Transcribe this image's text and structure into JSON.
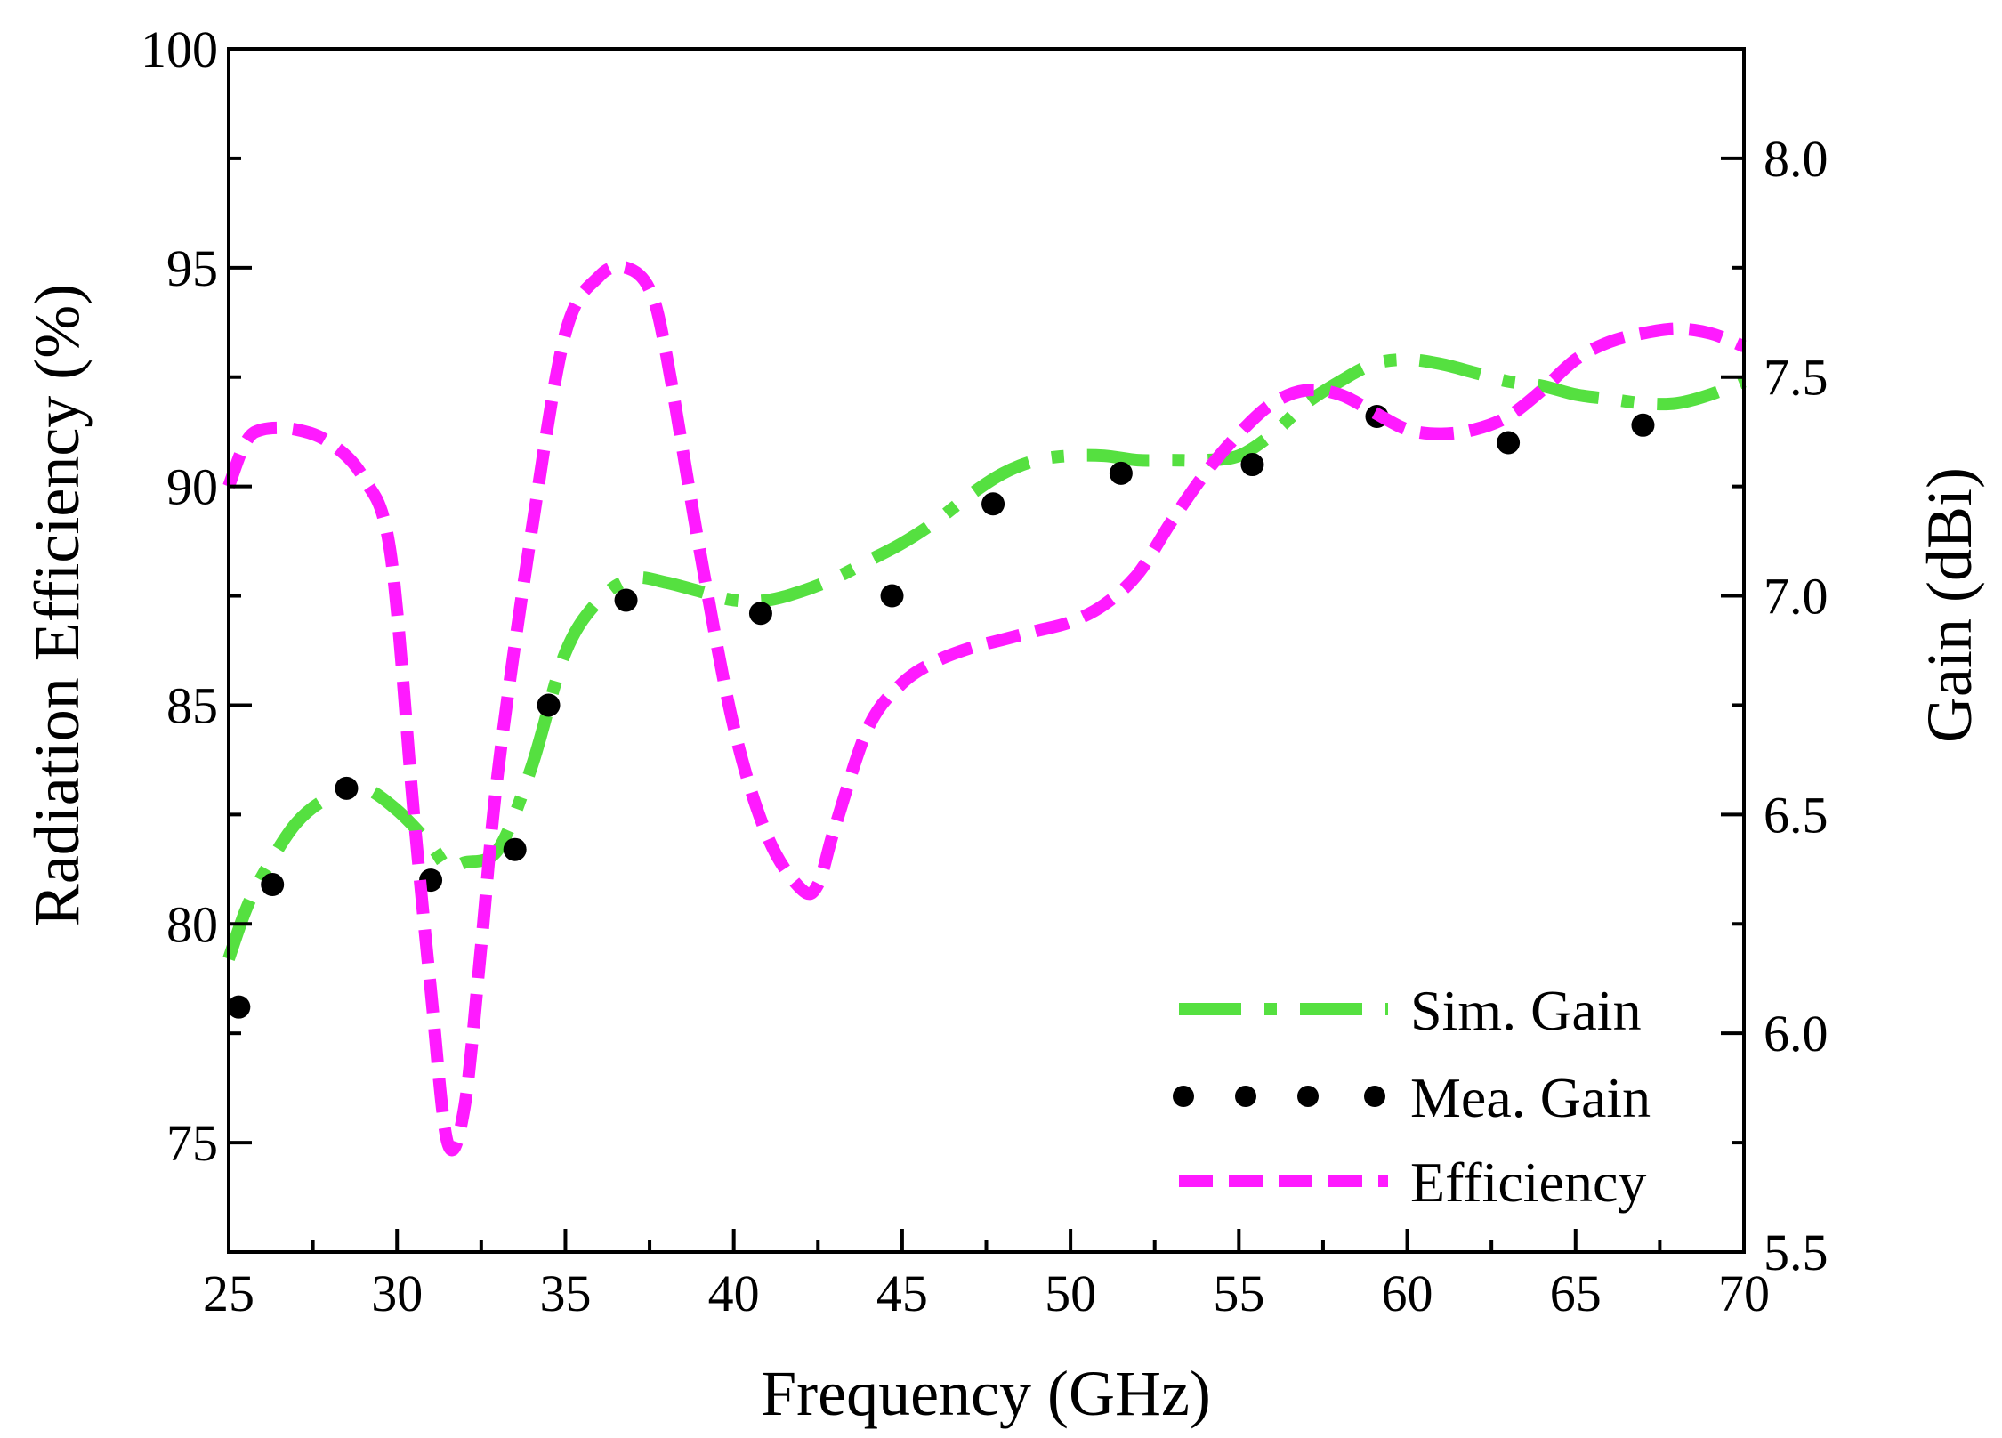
{
  "chart_data": {
    "type": "line",
    "title": "",
    "xlabel": "Frequency (GHz)",
    "ylabel_left": "Radiation Efficiency (%)",
    "ylabel_right": "Gain (dBi)",
    "xlim": [
      25,
      70
    ],
    "ylim_left": [
      72.5,
      100
    ],
    "ylim_right": [
      5.5,
      8.25
    ],
    "x_ticks": [
      25,
      30,
      35,
      40,
      45,
      50,
      55,
      60,
      65,
      70
    ],
    "y_left_ticks": [
      75,
      80,
      85,
      90,
      95,
      100
    ],
    "y_right_ticks": [
      "5.5",
      "6.0",
      "6.5",
      "7.0",
      "7.5",
      "8.0"
    ],
    "legend_position": "bottom-right",
    "series": [
      {
        "name": "Sim. Gain",
        "axis": "right",
        "color": "#55e040",
        "style": "dash-dot",
        "x": [
          25,
          25.5,
          26,
          27,
          28,
          29,
          30,
          31,
          31.5,
          32,
          33,
          34,
          35,
          36,
          37,
          38,
          39,
          40,
          41,
          42,
          43,
          44,
          45,
          46,
          47,
          48,
          49,
          50,
          51,
          52,
          53,
          54,
          55,
          56,
          57,
          58,
          59,
          60,
          61,
          62,
          63,
          64,
          65,
          66,
          67,
          68,
          69,
          70
        ],
        "y": [
          6.17,
          6.28,
          6.36,
          6.48,
          6.54,
          6.56,
          6.51,
          6.43,
          6.38,
          6.39,
          6.42,
          6.61,
          6.87,
          6.99,
          7.04,
          7.03,
          7.01,
          6.99,
          6.99,
          7.01,
          7.04,
          7.08,
          7.12,
          7.17,
          7.23,
          7.28,
          7.31,
          7.32,
          7.32,
          7.31,
          7.31,
          7.31,
          7.32,
          7.37,
          7.44,
          7.49,
          7.53,
          7.54,
          7.53,
          7.51,
          7.49,
          7.48,
          7.46,
          7.45,
          7.44,
          7.44,
          7.46,
          7.49
        ]
      },
      {
        "name": "Mea. Gain",
        "axis": "right",
        "color": "#000000",
        "style": "markers",
        "x": [
          25.3,
          26.3,
          28.5,
          31.0,
          33.5,
          34.5,
          36.8,
          40.8,
          44.7,
          47.7,
          51.5,
          55.4,
          59.1,
          63.0,
          67.0
        ],
        "y": [
          6.06,
          6.34,
          6.56,
          6.35,
          6.42,
          6.75,
          6.99,
          6.96,
          7.0,
          7.21,
          7.28,
          7.3,
          7.41,
          7.35,
          7.39
        ]
      },
      {
        "name": "Efficiency",
        "axis": "left",
        "color": "#ff1aff",
        "style": "dashed",
        "x": [
          25,
          25.5,
          26,
          27,
          28,
          29,
          29.8,
          30.5,
          31,
          31.5,
          32,
          32.5,
          33,
          34,
          35,
          36,
          36.8,
          37.5,
          38,
          39,
          40,
          41,
          42,
          42.5,
          43,
          44,
          45,
          46,
          47,
          48,
          49,
          50,
          51,
          52,
          53,
          54,
          55,
          56,
          57,
          58,
          59,
          60,
          61,
          62,
          63,
          64,
          65,
          66,
          67,
          68,
          69,
          70
        ],
        "y": [
          90.0,
          91.0,
          91.3,
          91.3,
          91.0,
          90.2,
          88.5,
          82.5,
          78.5,
          75.0,
          75.8,
          79.5,
          83.5,
          89.0,
          93.5,
          94.8,
          95.0,
          94.5,
          93.0,
          88.5,
          84.5,
          82.0,
          80.8,
          80.9,
          82.2,
          84.5,
          85.5,
          86.0,
          86.3,
          86.5,
          86.7,
          86.9,
          87.3,
          88.0,
          89.2,
          90.3,
          91.2,
          91.9,
          92.2,
          92.1,
          91.7,
          91.3,
          91.2,
          91.3,
          91.6,
          92.2,
          92.9,
          93.3,
          93.5,
          93.6,
          93.5,
          93.2
        ]
      }
    ]
  }
}
